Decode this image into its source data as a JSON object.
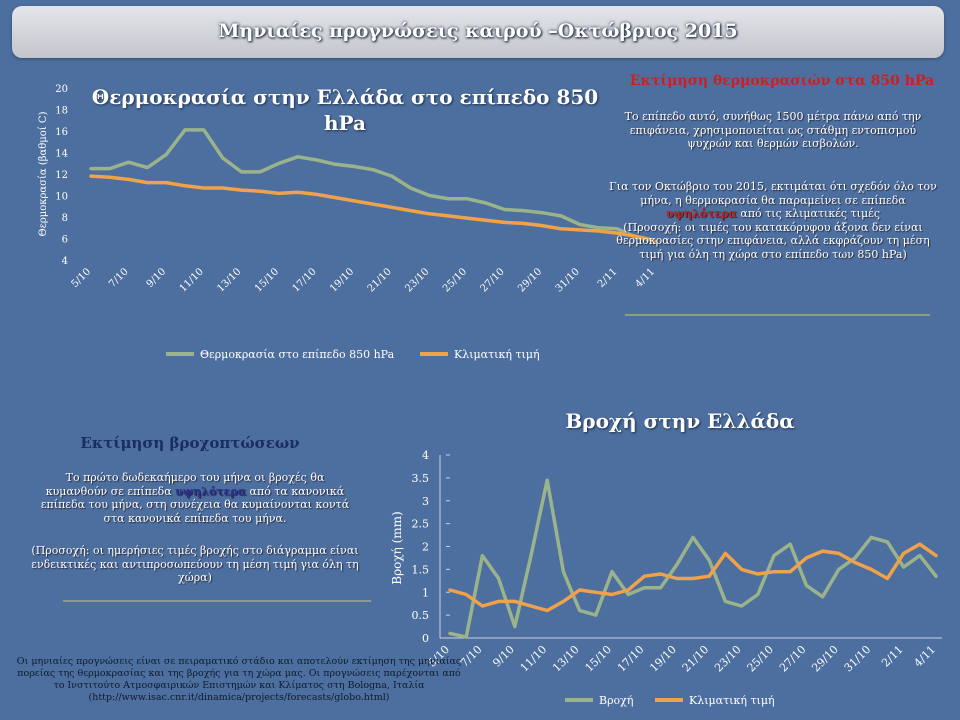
{
  "header": {
    "title": "Μηνιαίες προγνώσεις καιρού –Οκτώβριος 2015"
  },
  "temperature_section": {
    "title": "Θερμοκρασία στην Ελλάδα στο επίπεδο 850 hPa",
    "heading": "Εκτίμηση θερμοκρασιών στα 850 hPa",
    "para1": "Το επίπεδο αυτό, συνήθως 1500 μέτρα πάνω από την επιφάνεια, χρησιμοποιείται ως στάθμη εντοπισμού ψυχρών και θερμών εισβολών.",
    "para2_a": "Για τον Οκτώβριο του 2015, εκτιμάται ότι σχεδόν όλο τον μήνα, η θερμοκρασία θα παραμείνει σε επίπεδα",
    "para2_hl": "υψηλότερα",
    "para2_b": "από τις κλιματικές τιμές",
    "para2_c": "(Προσοχή: οι τιμές του κατακόρυφου άξονα δεν είναι θερμοκρασίες στην επιφάνεια, αλλά εκφράζουν τη μέση τιμή για όλη τη χώρα στο επίπεδο των 850 hPa)"
  },
  "rain_section": {
    "title": "Βροχή στην Ελλάδα",
    "heading": "Εκτίμηση βροχοπτώσεων",
    "para1_a": "Το πρώτο δωδεκαήμερο του μήνα οι βροχές θα κυμανθούν σε επίπεδα",
    "para1_hl": "υψηλότερα",
    "para1_b": "από τα κανονικά επίπεδα του μήνα, στη συνέχεια θα κυμαίνονται κοντά στα κανονικά επίπεδα του μήνα.",
    "para2": "(Προσοχή: οι ημερήσιες τιμές βροχής στο διάγραμμα είναι ενδεικτικές και αντιπροσωπεύουν τη μέση τιμή για όλη τη χώρα)"
  },
  "footer": {
    "text": "Οι μηνιαίες προγνώσεις είναι σε πειραματικό στάδιο και αποτελούν εκτίμηση της μηνιαίας πορείας της θερμοκρασίας και της βροχής για τη χώρα μας. Οι προγνώσεις παρέχονται από το Ινστιτούτο Ατμοσφαιρικών Επιστημών και Κλίματος στη Bologna, Ιταλία (http://www.isac.cnr.it/dinamica/projects/forecasts/globo.html)"
  },
  "colors": {
    "forecast": "#9bb38a",
    "climate": "#f0a24a",
    "accent_red": "#cc1f1f",
    "accent_blue": "#2a2f96"
  },
  "chart_data": [
    {
      "type": "line",
      "title": "Θερμοκρασία στην Ελλάδα στο επίπεδο 850 hPa",
      "ylabel": "Θερμοκρασία (βαθμοί C)",
      "ylim": [
        4,
        20
      ],
      "yticks": [
        4,
        6,
        8,
        10,
        12,
        14,
        16,
        18,
        20
      ],
      "x": [
        "5/10",
        "6/10",
        "7/10",
        "8/10",
        "9/10",
        "10/10",
        "11/10",
        "12/10",
        "13/10",
        "14/10",
        "15/10",
        "16/10",
        "17/10",
        "18/10",
        "19/10",
        "20/10",
        "21/10",
        "22/10",
        "23/10",
        "24/10",
        "25/10",
        "26/10",
        "27/10",
        "28/10",
        "29/10",
        "30/10",
        "31/10",
        "1/11",
        "2/11",
        "3/11",
        "4/11"
      ],
      "xtick_labels": [
        "5/10",
        "7/10",
        "9/10",
        "11/10",
        "13/10",
        "15/10",
        "17/10",
        "19/10",
        "21/10",
        "23/10",
        "25/10",
        "27/10",
        "29/10",
        "31/10",
        "2/11",
        "4/11"
      ],
      "legend": "bottom",
      "series": [
        {
          "name": "Θερμοκρασία στο επίπεδο 850 hPa",
          "values": [
            12.5,
            12.5,
            13.1,
            12.6,
            13.8,
            16.1,
            16.1,
            13.5,
            12.2,
            12.2,
            13.0,
            13.6,
            13.3,
            12.9,
            12.7,
            12.4,
            11.8,
            10.7,
            10.0,
            9.7,
            9.7,
            9.3,
            8.7,
            8.6,
            8.4,
            8.1,
            7.3,
            7.0,
            6.9,
            6.1,
            5.8
          ]
        },
        {
          "name": "Κλιματική τιμή",
          "values": [
            11.8,
            11.7,
            11.5,
            11.2,
            11.2,
            10.9,
            10.7,
            10.7,
            10.5,
            10.4,
            10.2,
            10.3,
            10.1,
            9.8,
            9.5,
            9.2,
            8.9,
            8.6,
            8.3,
            8.1,
            7.9,
            7.7,
            7.5,
            7.4,
            7.2,
            6.9,
            6.8,
            6.7,
            6.5,
            6.2,
            5.8
          ]
        }
      ]
    },
    {
      "type": "line",
      "title": "Βροχή στην Ελλάδα",
      "ylabel": "Βροχή (mm)",
      "ylim": [
        0,
        4
      ],
      "yticks": [
        0,
        0.5,
        1,
        1.5,
        2,
        2.5,
        3,
        3.5,
        4
      ],
      "x": [
        "5/10",
        "6/10",
        "7/10",
        "8/10",
        "9/10",
        "10/10",
        "11/10",
        "12/10",
        "13/10",
        "14/10",
        "15/10",
        "16/10",
        "17/10",
        "18/10",
        "19/10",
        "20/10",
        "21/10",
        "22/10",
        "23/10",
        "24/10",
        "25/10",
        "26/10",
        "27/10",
        "28/10",
        "29/10",
        "30/10",
        "31/10",
        "1/11",
        "2/11",
        "3/11",
        "4/11"
      ],
      "xtick_labels": [
        "5/10",
        "7/10",
        "9/10",
        "11/10",
        "13/10",
        "15/10",
        "17/10",
        "19/10",
        "21/10",
        "23/10",
        "25/10",
        "27/10",
        "29/10",
        "31/10",
        "2/11",
        "4/11"
      ],
      "legend": "bottom",
      "series": [
        {
          "name": "Βροχή",
          "values": [
            0.1,
            0.02,
            1.8,
            1.3,
            0.25,
            1.8,
            3.45,
            1.45,
            0.6,
            0.5,
            1.45,
            0.95,
            1.1,
            1.1,
            1.6,
            2.2,
            1.7,
            0.8,
            0.7,
            0.95,
            1.8,
            2.05,
            1.15,
            0.9,
            1.5,
            1.75,
            2.2,
            2.1,
            1.55,
            1.8,
            1.35
          ]
        },
        {
          "name": "Κλιματική τιμή",
          "values": [
            1.05,
            0.95,
            0.7,
            0.8,
            0.8,
            0.7,
            0.6,
            0.8,
            1.05,
            1.0,
            0.95,
            1.05,
            1.35,
            1.4,
            1.3,
            1.3,
            1.35,
            1.85,
            1.5,
            1.4,
            1.45,
            1.45,
            1.75,
            1.9,
            1.85,
            1.65,
            1.5,
            1.3,
            1.85,
            2.05,
            1.8
          ]
        }
      ]
    }
  ]
}
